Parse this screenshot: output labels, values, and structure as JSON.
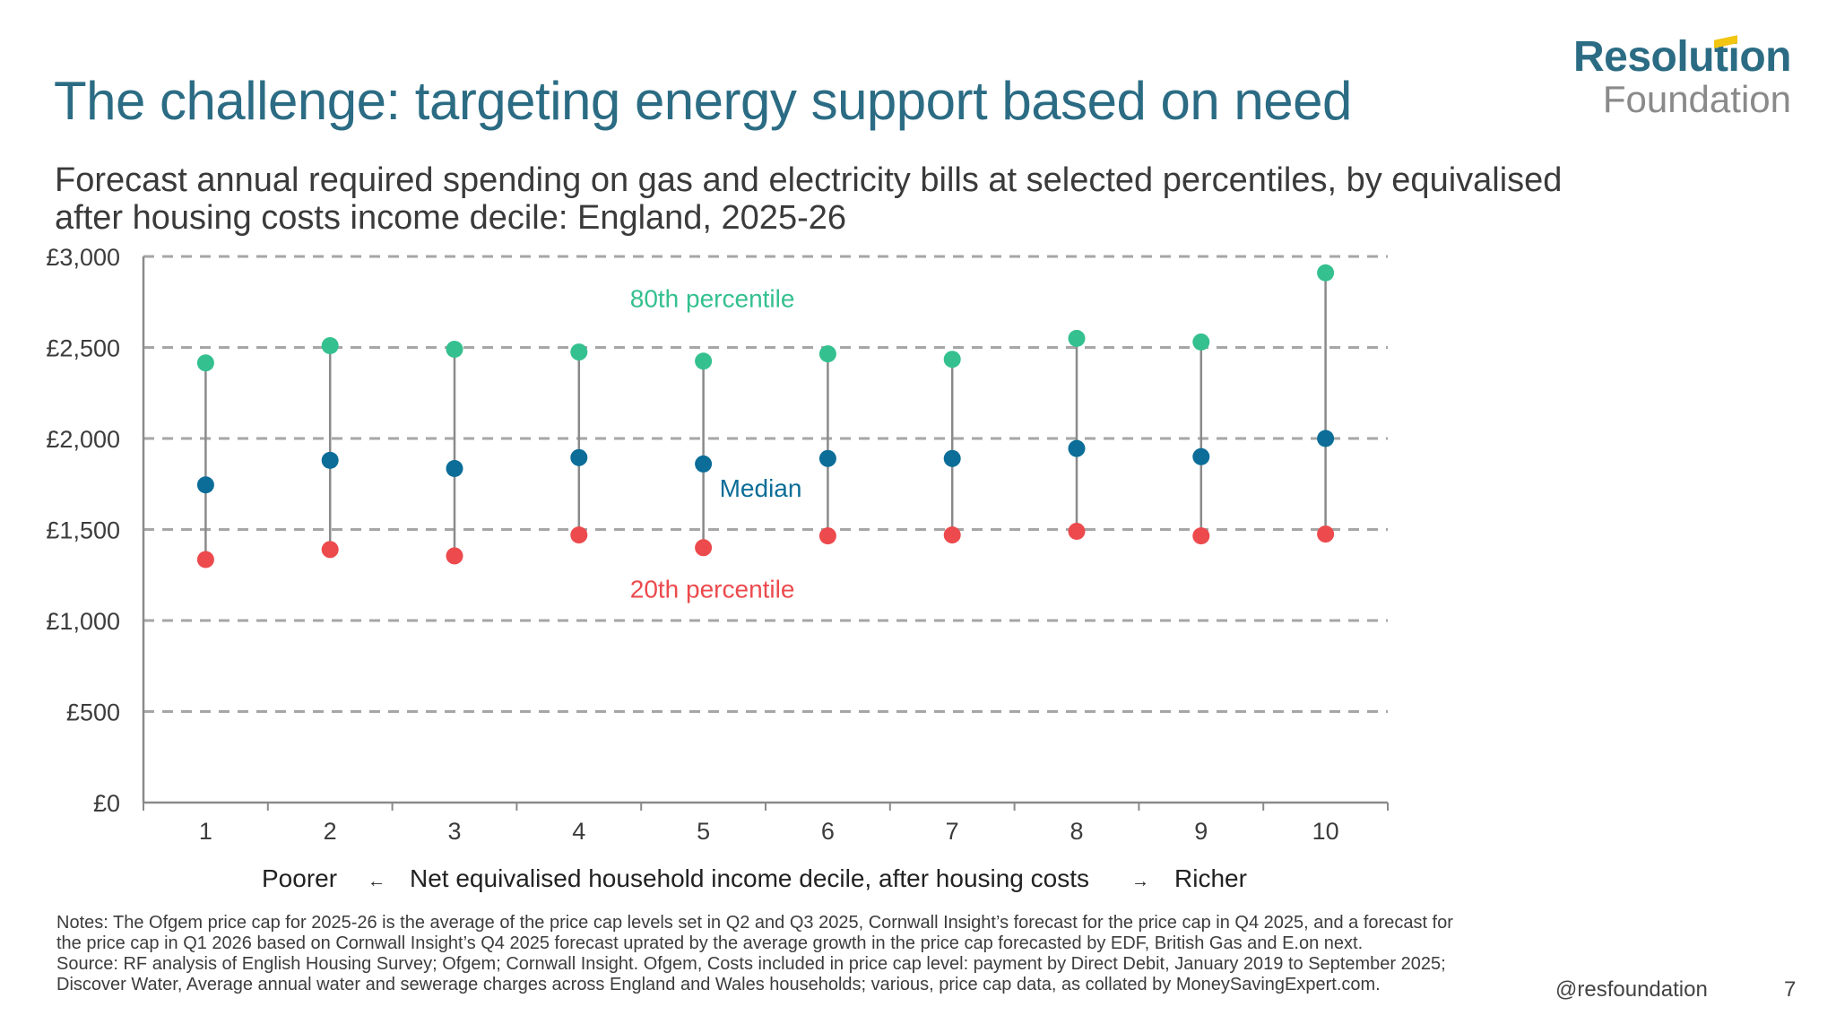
{
  "slide": {
    "title": "The challenge: targeting energy support based on need",
    "subtitle": "Forecast annual required spending on gas and electricity bills at selected percentiles, by equivalised after housing costs income decile: England, 2025-26",
    "logo": {
      "line1": "Resolution",
      "line2": "Foundation"
    },
    "x_axis_caption": {
      "left": "Poorer",
      "left_arrow": "←",
      "center": "Net equivalised household income decile, after housing costs",
      "right_arrow": "→",
      "right": "Richer"
    },
    "notes": "Notes: The Ofgem price cap for 2025-26 is the average of the price cap levels set in Q2 and Q3 2025, Cornwall Insight’s forecast for the price cap in Q4 2025, and a forecast for the price cap in Q1 2026 based on Cornwall Insight’s Q4 2025 forecast uprated by the average growth in the price cap forecasted by EDF, British Gas and E.on next.",
    "source": "Source: RF analysis of English Housing Survey; Ofgem; Cornwall Insight. Ofgem, Costs included in price cap level: payment by Direct Debit, January 2019 to September 2025; Discover Water, Average annual water and sewerage charges across England and Wales households; various, price cap data, as collated by MoneySavingExpert.com.",
    "handle": "@resfoundation",
    "page_number": "7"
  },
  "chart_data": {
    "type": "scatter",
    "title": "Forecast annual required spending on gas and electricity bills at selected percentiles, by equivalised after housing costs income decile: England, 2025-26",
    "xlabel": "Net equivalised household income decile, after housing costs",
    "ylabel": "",
    "categories": [
      "1",
      "2",
      "3",
      "4",
      "5",
      "6",
      "7",
      "8",
      "9",
      "10"
    ],
    "ylim": [
      0,
      3000
    ],
    "yticks": [
      0,
      500,
      1000,
      1500,
      2000,
      2500,
      3000
    ],
    "ytick_labels": [
      "£0",
      "£500",
      "£1,000",
      "£1,500",
      "£2,000",
      "£2,500",
      "£3,000"
    ],
    "grid": "horizontal dashed",
    "series": [
      {
        "name": "80th percentile",
        "color": "#34c08f",
        "values": [
          2415,
          2510,
          2490,
          2475,
          2425,
          2465,
          2435,
          2550,
          2530,
          2910
        ]
      },
      {
        "name": "Median",
        "color": "#0b6d98",
        "values": [
          1745,
          1880,
          1835,
          1895,
          1860,
          1890,
          1890,
          1945,
          1900,
          2000
        ]
      },
      {
        "name": "20th percentile",
        "color": "#ec4a4d",
        "values": [
          1335,
          1390,
          1355,
          1470,
          1400,
          1465,
          1470,
          1490,
          1465,
          1475
        ]
      }
    ],
    "annotations": [
      {
        "text": "80th percentile",
        "series": "80th percentile",
        "near_category": "5",
        "value": 2770
      },
      {
        "text": "Median",
        "series": "Median",
        "near_category": "5",
        "value": 1730
      },
      {
        "text": "20th percentile",
        "series": "20th percentile",
        "near_category": "5",
        "value": 1175
      }
    ],
    "connector_color": "#8a8a8a",
    "gridline_color": "#a6a6a6"
  }
}
